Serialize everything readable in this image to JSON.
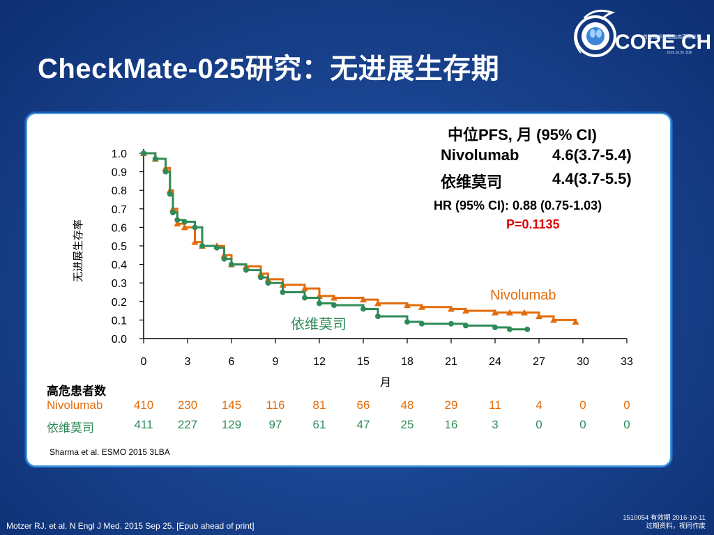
{
  "slide": {
    "title": "CheckMate-025研究：无进展生存期",
    "logo_text": "CORE CHINA",
    "logo_subtitle": "首届诺华肾细胞癌高峰论坛",
    "logo_ring_text": "Conference of Renal Cancer Experts in China",
    "logo_date": "2015.10.25 北京",
    "reference": "Sharma et al. ESMO 2015 3LBA",
    "footer_citation": "Motzer RJ. et al. N Engl J Med. 2015 Sep 25. [Epub ahead of print]",
    "footer_code": "1510054  有效期 2016-10-11",
    "footer_note": "过期资料，视同作废"
  },
  "summary": {
    "header": "中位PFS, 月 (95% CI)",
    "rows": [
      {
        "label": "Nivolumab",
        "value": "4.6(3.7-5.4)"
      },
      {
        "label": "依维莫司",
        "value": "4.4(3.7-5.5)"
      }
    ],
    "hr": "HR (95% CI): 0.88 (0.75-1.03)",
    "p": "P=0.1135"
  },
  "risk_table": {
    "header": "高危患者数",
    "rows": [
      {
        "label": "Nivolumab",
        "values": [
          "410",
          "230",
          "145",
          "116",
          "81",
          "66",
          "48",
          "29",
          "11",
          "4",
          "0",
          "0"
        ]
      },
      {
        "label": "依维莫司",
        "values": [
          "411",
          "227",
          "129",
          "97",
          "61",
          "47",
          "25",
          "16",
          "3",
          "0",
          "0",
          "0"
        ]
      }
    ]
  },
  "colors": {
    "nivolumab": "#e36c0a",
    "everolimus": "#2e8b57",
    "p_value": "#e00000",
    "background": "#1a4591"
  },
  "chart_data": {
    "type": "line",
    "xlabel": "月",
    "ylabel": "无进展生存率",
    "xlim": [
      0,
      33
    ],
    "ylim": [
      0,
      1.0
    ],
    "xticks": [
      0,
      3,
      6,
      9,
      12,
      15,
      18,
      21,
      24,
      27,
      30,
      33
    ],
    "yticks": [
      0.0,
      0.1,
      0.2,
      0.3,
      0.4,
      0.5,
      0.6,
      0.7,
      0.8,
      0.9,
      1.0
    ],
    "series": [
      {
        "name": "Nivolumab",
        "x": [
          0,
          0.8,
          1.5,
          1.8,
          2.0,
          2.3,
          2.8,
          3.5,
          4.0,
          5.0,
          5.5,
          6.0,
          7.0,
          8.0,
          8.5,
          9.5,
          11.0,
          12.0,
          13.0,
          15.0,
          16.0,
          18.0,
          19.0,
          21.0,
          22.0,
          24.0,
          25.0,
          26.0,
          27.0,
          28.0,
          29.5
        ],
        "y": [
          1.0,
          0.97,
          0.92,
          0.8,
          0.7,
          0.62,
          0.6,
          0.52,
          0.5,
          0.5,
          0.45,
          0.4,
          0.39,
          0.35,
          0.32,
          0.29,
          0.27,
          0.23,
          0.22,
          0.21,
          0.19,
          0.18,
          0.17,
          0.16,
          0.15,
          0.14,
          0.14,
          0.14,
          0.12,
          0.1,
          0.09
        ]
      },
      {
        "name": "依维莫司",
        "x": [
          0,
          0.8,
          1.5,
          1.8,
          2.0,
          2.3,
          2.8,
          3.5,
          4.0,
          5.0,
          5.5,
          6.0,
          7.0,
          8.0,
          8.5,
          9.5,
          11.0,
          12.0,
          13.0,
          15.0,
          16.0,
          18.0,
          19.0,
          21.0,
          22.0,
          24.0,
          25.0,
          26.2
        ],
        "y": [
          1.0,
          0.97,
          0.9,
          0.78,
          0.68,
          0.64,
          0.63,
          0.6,
          0.5,
          0.49,
          0.43,
          0.4,
          0.37,
          0.33,
          0.3,
          0.25,
          0.22,
          0.19,
          0.18,
          0.16,
          0.12,
          0.09,
          0.08,
          0.08,
          0.07,
          0.06,
          0.05,
          0.05
        ]
      }
    ],
    "annotations": [
      "Nivolumab",
      "依维莫司"
    ]
  }
}
